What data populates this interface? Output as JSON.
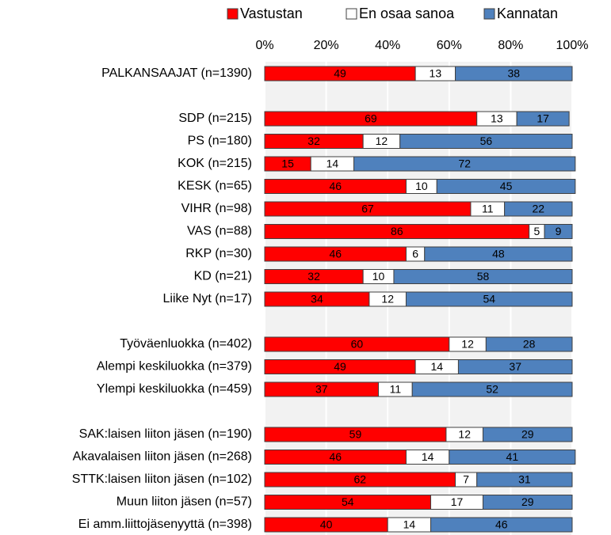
{
  "chart_data": {
    "type": "stacked-bar-horizontal",
    "categories": [
      "PALKANSAAJAT (n=1390)",
      null,
      "SDP (n=215)",
      "PS (n=180)",
      "KOK (n=215)",
      "KESK (n=65)",
      "VIHR (n=98)",
      "VAS (n=88)",
      "RKP (n=30)",
      "KD (n=21)",
      "Liike Nyt (n=17)",
      null,
      "Työväenluokka (n=402)",
      "Alempi keskiluokka (n=379)",
      "Ylempi keskiluokka (n=459)",
      null,
      "SAK:laisen liiton jäsen (n=190)",
      "Akavalaisen liiton jäsen (n=268)",
      "STTK:laisen liiton jäsen (n=102)",
      "Muun liiton jäsen (n=57)",
      "Ei amm.liittojäsenyyttä (n=398)"
    ],
    "series": [
      {
        "name": "Vastustan",
        "color": "#ff0000",
        "values": [
          49,
          null,
          69,
          32,
          15,
          46,
          67,
          86,
          46,
          32,
          34,
          null,
          60,
          49,
          37,
          null,
          59,
          46,
          62,
          54,
          40
        ]
      },
      {
        "name": "En osaa sanoa",
        "color": "#ffffff",
        "values": [
          13,
          null,
          13,
          12,
          14,
          10,
          11,
          5,
          6,
          10,
          12,
          null,
          12,
          14,
          11,
          null,
          12,
          14,
          7,
          17,
          14
        ]
      },
      {
        "name": "Kannatan",
        "color": "#4f81bd",
        "values": [
          38,
          null,
          17,
          56,
          72,
          45,
          22,
          9,
          48,
          58,
          54,
          null,
          28,
          37,
          52,
          null,
          29,
          41,
          31,
          29,
          46
        ]
      }
    ],
    "xlim": [
      0,
      100
    ],
    "xticks": [
      {
        "value": 0,
        "label": "0%"
      },
      {
        "value": 20,
        "label": "20%"
      },
      {
        "value": 40,
        "label": "40%"
      },
      {
        "value": 60,
        "label": "60%"
      },
      {
        "value": 80,
        "label": "80%"
      },
      {
        "value": 100,
        "label": "100%"
      }
    ],
    "grid": true,
    "legend": "top"
  }
}
